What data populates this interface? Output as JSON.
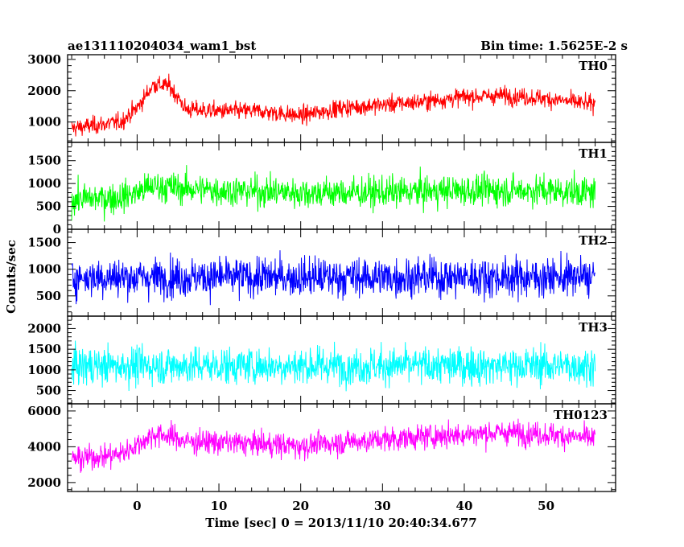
{
  "header": {
    "left": "ae131110204034_wam1_bst",
    "right": "Bin time: 1.5625E-2 s"
  },
  "chart_data": {
    "type": "line",
    "xlabel": "Time [sec] 0 = 2013/11/10 20:40:34.677",
    "ylabel": "Counts/sec",
    "xlim": [
      -8.5,
      58.5
    ],
    "x_data_range": [
      -8,
      56
    ],
    "xticks": [
      0,
      10,
      20,
      30,
      40,
      50
    ],
    "grid": false,
    "panels": [
      {
        "name": "TH0",
        "color": "#ff0000",
        "ylim": [
          350,
          3150
        ],
        "yticks": [
          1000,
          2000,
          3000
        ],
        "profile": [
          [
            -8,
            800
          ],
          [
            -2,
            1000
          ],
          [
            0,
            1450
          ],
          [
            2,
            2200
          ],
          [
            4,
            2150
          ],
          [
            6,
            1400
          ],
          [
            10,
            1350
          ],
          [
            15,
            1350
          ],
          [
            20,
            1200
          ],
          [
            25,
            1450
          ],
          [
            30,
            1550
          ],
          [
            35,
            1650
          ],
          [
            40,
            1800
          ],
          [
            45,
            1850
          ],
          [
            50,
            1750
          ],
          [
            56,
            1550
          ]
        ],
        "noise_sigma": 200
      },
      {
        "name": "TH1",
        "color": "#00ff00",
        "ylim": [
          0,
          1900
        ],
        "yticks": [
          0,
          500,
          1000,
          1500
        ],
        "profile": [
          [
            -8,
            650
          ],
          [
            -2,
            700
          ],
          [
            0,
            800
          ],
          [
            2,
            950
          ],
          [
            5,
            900
          ],
          [
            10,
            850
          ],
          [
            20,
            800
          ],
          [
            30,
            800
          ],
          [
            40,
            850
          ],
          [
            50,
            850
          ],
          [
            56,
            800
          ]
        ],
        "noise_sigma": 240
      },
      {
        "name": "TH2",
        "color": "#0000ff",
        "ylim": [
          120,
          1750
        ],
        "yticks": [
          500,
          1000,
          1500
        ],
        "profile": [
          [
            -8,
            850
          ],
          [
            0,
            850
          ],
          [
            10,
            850
          ],
          [
            20,
            850
          ],
          [
            30,
            850
          ],
          [
            40,
            850
          ],
          [
            50,
            850
          ],
          [
            56,
            850
          ]
        ],
        "noise_sigma": 260
      },
      {
        "name": "TH3",
        "color": "#00ffff",
        "ylim": [
          180,
          2300
        ],
        "yticks": [
          500,
          1000,
          1500,
          2000
        ],
        "profile": [
          [
            -8,
            1100
          ],
          [
            0,
            1100
          ],
          [
            10,
            1100
          ],
          [
            20,
            1100
          ],
          [
            30,
            1100
          ],
          [
            40,
            1100
          ],
          [
            50,
            1100
          ],
          [
            56,
            1100
          ]
        ],
        "noise_sigma": 320
      },
      {
        "name": "TH0123",
        "color": "#ff00ff",
        "ylim": [
          1500,
          6400
        ],
        "yticks": [
          2000,
          4000,
          6000
        ],
        "profile": [
          [
            -8,
            3300
          ],
          [
            -2,
            3600
          ],
          [
            0,
            4100
          ],
          [
            2,
            4700
          ],
          [
            4,
            4600
          ],
          [
            6,
            4300
          ],
          [
            10,
            4250
          ],
          [
            20,
            4050
          ],
          [
            25,
            4250
          ],
          [
            30,
            4400
          ],
          [
            35,
            4550
          ],
          [
            40,
            4700
          ],
          [
            45,
            4800
          ],
          [
            50,
            4700
          ],
          [
            56,
            4450
          ]
        ],
        "noise_sigma": 480
      }
    ]
  }
}
